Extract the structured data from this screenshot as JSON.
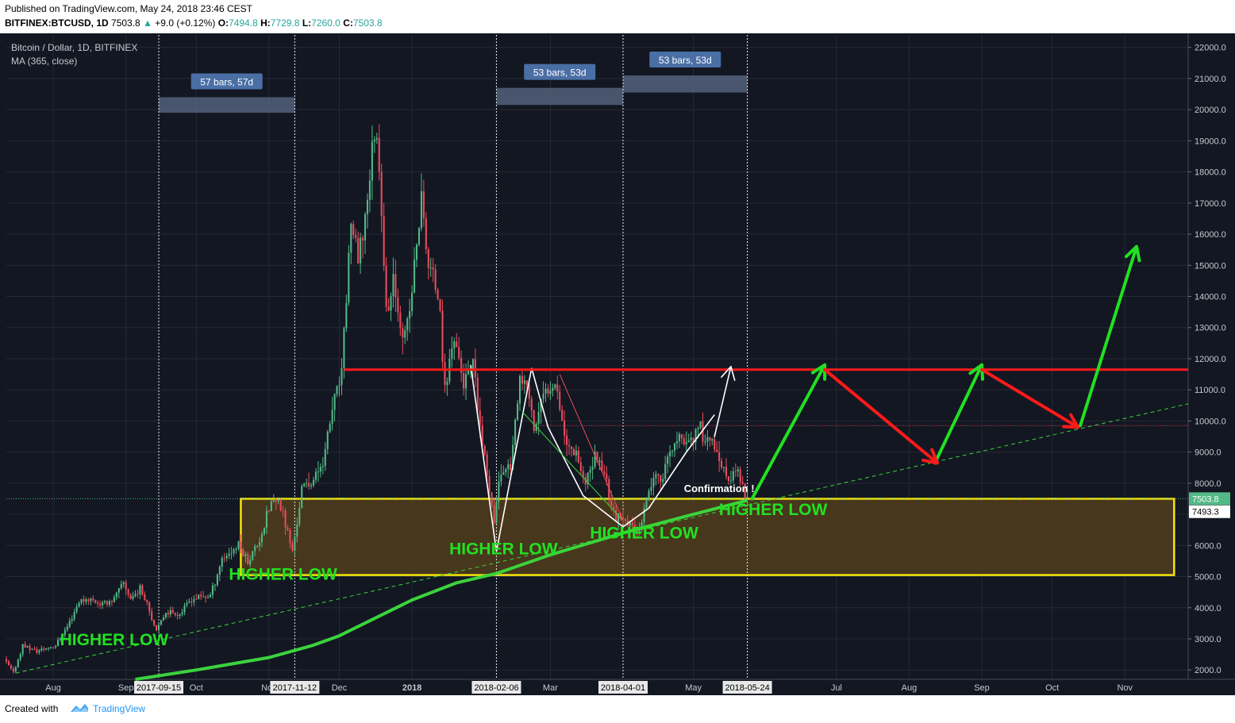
{
  "header": {
    "published": "Published on TradingView.com, May 24, 2018 23:46 CEST",
    "symbol": "BITFINEX:BTCUSD, 1D",
    "last": "7503.8",
    "change": "+9.0 (+0.12%)",
    "o_label": "O:",
    "o": "7494.8",
    "h_label": "H:",
    "h": "7729.8",
    "l_label": "L:",
    "l": "7260.0",
    "c_label": "C:",
    "c": "7503.8"
  },
  "legend": {
    "title": "Bitcoin / Dollar, 1D, BITFINEX",
    "indicator": "MA (365, close)"
  },
  "footer": {
    "created": "Created with",
    "brand": "TradingView"
  },
  "colors": {
    "background": "#131722",
    "up": "#53b987",
    "down": "#eb4d5c",
    "ma": "#3bd33b",
    "resistance": "#ff1a1a",
    "zone_border": "#f5e50c",
    "zone_fill": "#4e3b1c",
    "measure_label": "#4a6fa5",
    "annotation": "#22e022"
  },
  "chart_data": {
    "type": "candlestick",
    "symbol": "Bitcoin / Dollar",
    "interval": "1D",
    "exchange": "BITFINEX",
    "ylim": [
      1700,
      22400
    ],
    "y_ticks": [
      2000,
      3000,
      4000,
      5000,
      6000,
      7000,
      8000,
      9000,
      10000,
      11000,
      12000,
      13000,
      14000,
      15000,
      16000,
      17000,
      18000,
      19000,
      20000,
      21000,
      22000
    ],
    "y_tick_labels": [
      "2000.0",
      "3000.0",
      "4000.0",
      "5000.0",
      "6000.0",
      "7000.0",
      "8000.0",
      "9000.0",
      "10000.0",
      "11000.0",
      "12000.0",
      "13000.0",
      "14000.0",
      "15000.0",
      "16000.0",
      "17000.0",
      "18000.0",
      "19000.0",
      "20000.0",
      "21000.0",
      "22000.0"
    ],
    "x_range": [
      "2017-07-12",
      "2018-11-28"
    ],
    "x_ticks": [
      {
        "date": "2017-08-01",
        "label": "Aug"
      },
      {
        "date": "2017-09-01",
        "label": "Sep"
      },
      {
        "date": "2017-10-01",
        "label": "Oct"
      },
      {
        "date": "2017-11-01",
        "label": "Nov"
      },
      {
        "date": "2017-12-01",
        "label": "Dec"
      },
      {
        "date": "2018-01-01",
        "label": "2018"
      },
      {
        "date": "2018-03-01",
        "label": "Mar"
      },
      {
        "date": "2018-05-01",
        "label": "May"
      },
      {
        "date": "2018-07-01",
        "label": "Jul"
      },
      {
        "date": "2018-08-01",
        "label": "Aug"
      },
      {
        "date": "2018-09-01",
        "label": "Sep"
      },
      {
        "date": "2018-10-01",
        "label": "Oct"
      },
      {
        "date": "2018-11-01",
        "label": "Nov"
      }
    ],
    "vertical_markers": [
      {
        "date": "2017-09-15",
        "label": "2017-09-15"
      },
      {
        "date": "2017-11-12",
        "label": "2017-11-12"
      },
      {
        "date": "2018-02-06",
        "label": "2018-02-06"
      },
      {
        "date": "2018-04-01",
        "label": "2018-04-01"
      },
      {
        "date": "2018-05-24",
        "label": "2018-05-24"
      }
    ],
    "price_path": [
      [
        "2017-07-12",
        2350
      ],
      [
        "2017-07-16",
        1900
      ],
      [
        "2017-07-20",
        2800
      ],
      [
        "2017-07-26",
        2600
      ],
      [
        "2017-08-03",
        2800
      ],
      [
        "2017-08-08",
        3400
      ],
      [
        "2017-08-13",
        4200
      ],
      [
        "2017-08-17",
        4300
      ],
      [
        "2017-08-23",
        4100
      ],
      [
        "2017-08-28",
        4300
      ],
      [
        "2017-09-01",
        4800
      ],
      [
        "2017-09-04",
        4300
      ],
      [
        "2017-09-08",
        4600
      ],
      [
        "2017-09-11",
        4200
      ],
      [
        "2017-09-15",
        3200
      ],
      [
        "2017-09-19",
        3900
      ],
      [
        "2017-09-25",
        3800
      ],
      [
        "2017-09-30",
        4300
      ],
      [
        "2017-10-08",
        4400
      ],
      [
        "2017-10-13",
        5600
      ],
      [
        "2017-10-20",
        6000
      ],
      [
        "2017-10-24",
        5500
      ],
      [
        "2017-10-29",
        6200
      ],
      [
        "2017-11-03",
        7400
      ],
      [
        "2017-11-07",
        7300
      ],
      [
        "2017-11-12",
        5800
      ],
      [
        "2017-11-16",
        7800
      ],
      [
        "2017-11-22",
        8200
      ],
      [
        "2017-11-26",
        9000
      ],
      [
        "2017-11-29",
        10400
      ],
      [
        "2017-12-03",
        11500
      ],
      [
        "2017-12-07",
        16500
      ],
      [
        "2017-12-10",
        15000
      ],
      [
        "2017-12-13",
        16600
      ],
      [
        "2017-12-17",
        19300
      ],
      [
        "2017-12-19",
        18500
      ],
      [
        "2017-12-22",
        13500
      ],
      [
        "2017-12-25",
        14300
      ],
      [
        "2017-12-30",
        12700
      ],
      [
        "2018-01-01",
        13500
      ],
      [
        "2018-01-06",
        17100
      ],
      [
        "2018-01-09",
        15000
      ],
      [
        "2018-01-13",
        14200
      ],
      [
        "2018-01-16",
        11000
      ],
      [
        "2018-01-20",
        12800
      ],
      [
        "2018-01-24",
        11200
      ],
      [
        "2018-01-28",
        11700
      ],
      [
        "2018-02-01",
        9200
      ],
      [
        "2018-02-06",
        6900
      ],
      [
        "2018-02-09",
        8400
      ],
      [
        "2018-02-13",
        8600
      ],
      [
        "2018-02-17",
        11100
      ],
      [
        "2018-02-20",
        11200
      ],
      [
        "2018-02-23",
        9700
      ],
      [
        "2018-02-27",
        10800
      ],
      [
        "2018-03-04",
        11400
      ],
      [
        "2018-03-09",
        9200
      ],
      [
        "2018-03-13",
        9100
      ],
      [
        "2018-03-17",
        7900
      ],
      [
        "2018-03-21",
        8900
      ],
      [
        "2018-03-25",
        8400
      ],
      [
        "2018-03-29",
        7000
      ],
      [
        "2018-04-01",
        6800
      ],
      [
        "2018-04-06",
        6600
      ],
      [
        "2018-04-10",
        6700
      ],
      [
        "2018-04-14",
        8000
      ],
      [
        "2018-04-19",
        8300
      ],
      [
        "2018-04-24",
        9300
      ],
      [
        "2018-04-29",
        9400
      ],
      [
        "2018-05-05",
        9700
      ],
      [
        "2018-05-10",
        9300
      ],
      [
        "2018-05-13",
        8600
      ],
      [
        "2018-05-17",
        8100
      ],
      [
        "2018-05-21",
        8400
      ],
      [
        "2018-05-24",
        7504
      ]
    ],
    "series": [
      {
        "name": "MA (365, close)",
        "type": "line",
        "points": [
          [
            "2017-09-05",
            1700
          ],
          [
            "2017-10-01",
            2000
          ],
          [
            "2017-11-01",
            2400
          ],
          [
            "2017-11-20",
            2800
          ],
          [
            "2017-12-01",
            3100
          ],
          [
            "2018-01-01",
            4250
          ],
          [
            "2018-01-20",
            4800
          ],
          [
            "2018-02-06",
            5100
          ],
          [
            "2018-03-01",
            5700
          ],
          [
            "2018-04-01",
            6400
          ],
          [
            "2018-05-01",
            7000
          ],
          [
            "2018-05-24",
            7450
          ]
        ]
      }
    ],
    "last_price": {
      "value": 7503.8,
      "label": "7503.8"
    },
    "price_marker": {
      "value": 7493.3,
      "label": "7493.3"
    },
    "resistance_level": 11650,
    "red_dotted_level": 9850,
    "support_zone": {
      "from": "2017-10-20",
      "to": "2018-11-22",
      "low": 5050,
      "high": 7500
    },
    "trendline": {
      "from": [
        "2017-07-16",
        1900
      ],
      "to": [
        "2018-11-28",
        10550
      ]
    },
    "measure_boxes": [
      {
        "from": "2017-09-15",
        "to": "2017-11-12",
        "low": 19900,
        "high": 20400,
        "label": "57 bars, 57d"
      },
      {
        "from": "2018-02-06",
        "to": "2018-04-01",
        "low": 20150,
        "high": 20700,
        "label": "53 bars, 53d"
      },
      {
        "from": "2018-04-01",
        "to": "2018-05-24",
        "low": 20550,
        "high": 21100,
        "label": "53 bars, 53d"
      }
    ],
    "annotations": [
      {
        "text": "HIGHER LOW",
        "date": "2017-08-27",
        "price": 2800
      },
      {
        "text": "HIGHER LOW",
        "date": "2017-11-07",
        "price": 4900
      },
      {
        "text": "HIGHER LOW",
        "date": "2018-02-09",
        "price": 5720
      },
      {
        "text": "HIGHER LOW",
        "date": "2018-04-10",
        "price": 6230
      },
      {
        "text": "HIGHER LOW",
        "date": "2018-06-04",
        "price": 6980
      },
      {
        "text": "Confirmation !",
        "date": "2018-05-12",
        "price": 7720
      }
    ],
    "projection_arrows": {
      "green": [
        [
          [
            "2018-05-26",
            7500
          ],
          [
            "2018-06-26",
            11800
          ]
        ],
        [
          [
            "2018-08-12",
            8650
          ],
          [
            "2018-09-01",
            11800
          ]
        ],
        [
          [
            "2018-10-13",
            9850
          ],
          [
            "2018-11-06",
            15600
          ]
        ]
      ],
      "red": [
        [
          [
            "2018-06-26",
            11650
          ],
          [
            "2018-08-13",
            8650
          ]
        ],
        [
          [
            "2018-09-01",
            11650
          ],
          [
            "2018-10-12",
            9800
          ]
        ]
      ],
      "white": [
        [
          [
            "2018-05-10",
            9500
          ],
          [
            "2018-05-17",
            11750
          ]
        ]
      ]
    }
  }
}
